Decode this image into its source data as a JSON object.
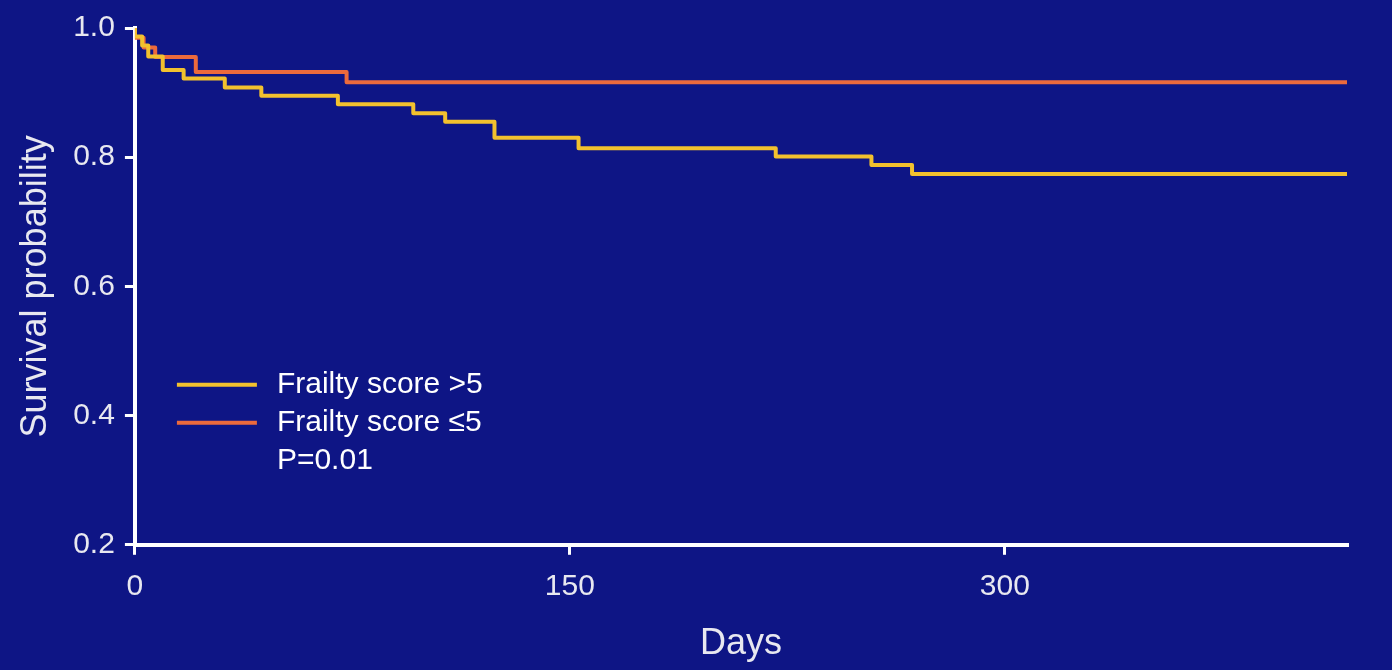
{
  "chart_data": {
    "type": "step",
    "xlabel": "Days",
    "ylabel": "Survival probability",
    "xlim": [
      0,
      418
    ],
    "ylim": [
      0.2,
      1.0
    ],
    "xticks": [
      0,
      150,
      300
    ],
    "yticks": [
      {
        "value": 0.2,
        "label": "0.2"
      },
      {
        "value": 0.4,
        "label": "0.4"
      },
      {
        "value": 0.6,
        "label": "0.6"
      },
      {
        "value": 0.8,
        "label": "0.8"
      },
      {
        "value": 1.0,
        "label": "1.0"
      }
    ],
    "grid": false,
    "legend": "bottom left",
    "annotations": [
      "P=0.01"
    ],
    "series": [
      {
        "name": "Frailty score >5",
        "color": "#f2c12e",
        "x": [
          0,
          2.5,
          4.6,
          9.6,
          16.8,
          31,
          43.6,
          70,
          96,
          107,
          124,
          153,
          221,
          254,
          268,
          350,
          418
        ],
        "values": [
          1.0,
          0.987,
          0.973,
          0.956,
          0.935,
          0.922,
          0.908,
          0.895,
          0.882,
          0.868,
          0.855,
          0.83,
          0.814,
          0.801,
          0.788,
          0.774,
          0.774
        ]
      },
      {
        "name": "Frailty score ≤5",
        "color": "#ec6a3c",
        "x": [
          0,
          3,
          7,
          21,
          73,
          227,
          418
        ],
        "values": [
          1.0,
          0.985,
          0.97,
          0.955,
          0.932,
          0.916,
          0.916
        ]
      }
    ]
  }
}
